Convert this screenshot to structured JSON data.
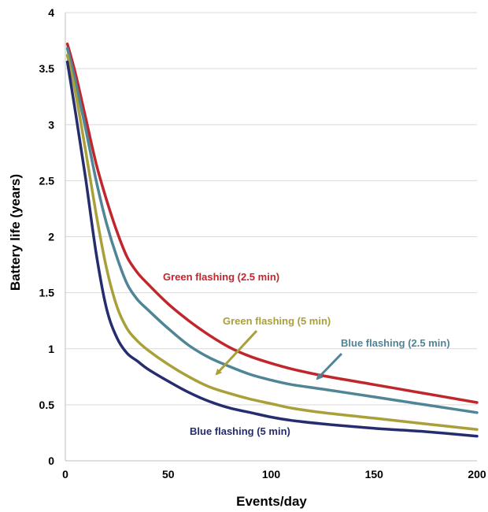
{
  "chart_data": {
    "type": "line",
    "title": "",
    "xlabel": "Events/day",
    "ylabel": "Battery life (years)",
    "xlim": [
      0,
      200
    ],
    "ylim": [
      0,
      4
    ],
    "xticks": [
      0,
      50,
      100,
      150,
      200
    ],
    "yticks": [
      0,
      0.5,
      1,
      1.5,
      2,
      2.5,
      3,
      3.5,
      4
    ],
    "grid": "horizontal",
    "legend": "none",
    "series": [
      {
        "key": "green25",
        "color": "#c0272d",
        "x": [
          1,
          5,
          10,
          15,
          20,
          25,
          30,
          35,
          40,
          50,
          60,
          70,
          80,
          90,
          100,
          110,
          125,
          150,
          175,
          200
        ],
        "y": [
          3.72,
          3.45,
          3.05,
          2.65,
          2.33,
          2.05,
          1.82,
          1.68,
          1.58,
          1.4,
          1.25,
          1.12,
          1.01,
          0.93,
          0.87,
          0.82,
          0.76,
          0.68,
          0.6,
          0.52
        ]
      },
      {
        "key": "blue25",
        "color": "#4f8596",
        "x": [
          1,
          5,
          10,
          15,
          20,
          25,
          30,
          35,
          40,
          50,
          60,
          70,
          80,
          90,
          100,
          110,
          125,
          150,
          175,
          200
        ],
        "y": [
          3.68,
          3.38,
          2.95,
          2.5,
          2.12,
          1.82,
          1.58,
          1.44,
          1.35,
          1.18,
          1.03,
          0.92,
          0.84,
          0.77,
          0.72,
          0.68,
          0.64,
          0.57,
          0.5,
          0.43
        ]
      },
      {
        "key": "green5",
        "color": "#a9a03a",
        "x": [
          1,
          5,
          10,
          15,
          20,
          25,
          30,
          35,
          40,
          50,
          60,
          70,
          80,
          90,
          100,
          110,
          125,
          150,
          175,
          200
        ],
        "y": [
          3.62,
          3.28,
          2.75,
          2.2,
          1.72,
          1.38,
          1.18,
          1.07,
          0.99,
          0.86,
          0.75,
          0.66,
          0.6,
          0.55,
          0.51,
          0.47,
          0.43,
          0.38,
          0.33,
          0.28
        ]
      },
      {
        "key": "blue5",
        "color": "#262d6e",
        "x": [
          1,
          5,
          10,
          15,
          20,
          25,
          30,
          35,
          40,
          50,
          60,
          70,
          80,
          90,
          100,
          110,
          125,
          150,
          175,
          200
        ],
        "y": [
          3.56,
          3.1,
          2.5,
          1.85,
          1.36,
          1.1,
          0.96,
          0.89,
          0.82,
          0.71,
          0.61,
          0.53,
          0.47,
          0.43,
          0.39,
          0.36,
          0.33,
          0.29,
          0.26,
          0.22
        ]
      }
    ],
    "annotations": [
      {
        "text": "Green flashing (2.5 min)",
        "color": "#c0272d"
      },
      {
        "text": "Green flashing (5 min)",
        "color": "#a9a03a"
      },
      {
        "text": "Blue flashing (2.5 min)",
        "color": "#4f8596"
      },
      {
        "text": "Blue flashing (5 min)",
        "color": "#262d6e"
      }
    ]
  }
}
